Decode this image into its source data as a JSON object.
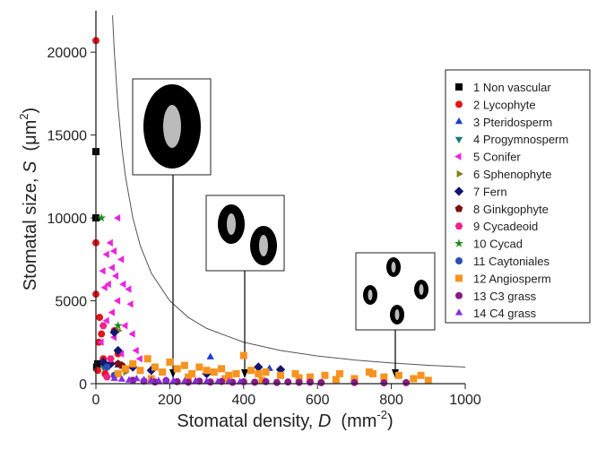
{
  "chart_data": {
    "type": "scatter",
    "xlabel": [
      "Stomatal density, ",
      "D",
      "  (mm",
      "-2",
      ")"
    ],
    "ylabel": [
      "Stomatal size, ",
      "S",
      "  (μm",
      "2",
      ")"
    ],
    "xlim": [
      0,
      1000
    ],
    "xticks": [
      0,
      200,
      400,
      600,
      800,
      1000
    ],
    "ylim": [
      0,
      22500
    ],
    "yticks": [
      0,
      5000,
      10000,
      15000,
      20000
    ],
    "curve": {
      "color": "#555555",
      "x": [
        45,
        50,
        60,
        70,
        80,
        100,
        120,
        150,
        200,
        250,
        300,
        400,
        500,
        600,
        700,
        800,
        900,
        1000
      ],
      "values": [
        22222,
        20000,
        16667,
        14286,
        12500,
        10000,
        8333,
        6667,
        5000,
        4000,
        3333,
        2500,
        2000,
        1667,
        1429,
        1250,
        1111,
        1000
      ]
    },
    "series": [
      {
        "name": "1  Non vascular",
        "color": "#000000",
        "marker": "square",
        "x": [
          0,
          0,
          2,
          5
        ],
        "values": [
          14000,
          10000,
          1000,
          1200
        ]
      },
      {
        "name": "2  Lycophyte",
        "color": "#e8141b",
        "marker": "circle",
        "x": [
          0,
          0,
          0,
          10,
          15,
          8,
          20,
          30,
          5,
          50,
          60,
          25
        ],
        "values": [
          20700,
          8500,
          5400,
          4000,
          3000,
          2500,
          1500,
          1000,
          800,
          3200,
          1800,
          600
        ]
      },
      {
        "name": "3  Pteridosperm",
        "color": "#1a3ccf",
        "marker": "triangle-up",
        "x": [
          310,
          470,
          60
        ],
        "values": [
          1600,
          900,
          1100
        ]
      },
      {
        "name": "4  Progymnosperm",
        "color": "#137a7a",
        "marker": "triangle-down",
        "x": [
          20
        ],
        "values": [
          1000
        ]
      },
      {
        "name": "5  Conifer",
        "color": "#ee22dd",
        "marker": "triangle-left",
        "x": [
          60,
          40,
          50,
          30,
          70,
          45,
          20,
          55,
          75,
          35,
          25,
          90,
          60,
          95,
          45,
          30,
          80,
          100,
          50,
          15,
          110,
          70,
          120
        ],
        "values": [
          10000,
          8500,
          8000,
          7800,
          7500,
          7000,
          6800,
          6500,
          6000,
          6000,
          5800,
          5700,
          5000,
          4800,
          4300,
          3800,
          3500,
          3000,
          2800,
          2500,
          2000,
          1800,
          1500
        ]
      },
      {
        "name": "6  Sphenophyte",
        "color": "#808018",
        "marker": "triangle-right",
        "x": [
          60,
          80
        ],
        "values": [
          3200,
          700
        ]
      },
      {
        "name": "7  Fern",
        "color": "#151570",
        "marker": "diamond",
        "x": [
          50,
          60,
          20,
          40,
          100,
          150,
          300,
          500,
          440
        ],
        "values": [
          3100,
          2000,
          1300,
          1200,
          1000,
          800,
          600,
          850,
          1000
        ]
      },
      {
        "name": "8  Ginkgophyte",
        "color": "#7a1010",
        "marker": "pentagon",
        "x": [
          60,
          70
        ],
        "values": [
          1200,
          1100
        ]
      },
      {
        "name": "9  Cycadeoid",
        "color": "#ee2288",
        "marker": "hexagon",
        "x": [
          20,
          40,
          80,
          30
        ],
        "values": [
          3500,
          1500,
          900,
          400
        ]
      },
      {
        "name": "10  Cycad",
        "color": "#1b8a1b",
        "marker": "star",
        "x": [
          15,
          60
        ],
        "values": [
          10000,
          3500
        ]
      },
      {
        "name": "11  Caytoniales",
        "color": "#2a4fb0",
        "marker": "circle",
        "x": [
          30,
          50
        ],
        "values": [
          1000,
          500
        ]
      },
      {
        "name": "12  Angiosperm",
        "color": "#f7931e",
        "marker": "square",
        "x": [
          60,
          80,
          100,
          120,
          140,
          160,
          180,
          200,
          220,
          240,
          260,
          280,
          300,
          320,
          340,
          360,
          380,
          400,
          420,
          440,
          460,
          500,
          540,
          580,
          620,
          660,
          700,
          740,
          780,
          820,
          860,
          880,
          900,
          150,
          250,
          350,
          450,
          550,
          650,
          750
        ],
        "values": [
          600,
          900,
          1200,
          800,
          1500,
          1000,
          700,
          1300,
          900,
          1100,
          600,
          1000,
          800,
          700,
          900,
          500,
          600,
          1700,
          800,
          600,
          700,
          500,
          600,
          400,
          500,
          600,
          300,
          700,
          400,
          500,
          300,
          500,
          200,
          300,
          400,
          300,
          200,
          350,
          250,
          600
        ]
      },
      {
        "name": "13  C3 grass",
        "color": "#8b1a8b",
        "marker": "circle",
        "x": [
          100,
          130,
          160,
          190,
          220,
          250,
          280,
          310,
          340,
          370,
          400,
          430,
          460,
          490,
          520,
          550,
          580,
          610,
          700,
          780,
          840
        ],
        "values": [
          200,
          150,
          100,
          180,
          120,
          90,
          150,
          100,
          130,
          80,
          110,
          90,
          120,
          70,
          100,
          80,
          90,
          60,
          70,
          50,
          60
        ]
      },
      {
        "name": "14  C4 grass",
        "color": "#8a2be2",
        "marker": "triangle-up",
        "x": [
          50,
          70,
          90,
          110,
          130,
          150,
          170,
          190,
          210,
          240,
          270,
          300,
          330,
          360,
          390
        ],
        "values": [
          300,
          250,
          200,
          280,
          220,
          180,
          150,
          200,
          160,
          130,
          150,
          120,
          100,
          110,
          90
        ]
      }
    ]
  }
}
